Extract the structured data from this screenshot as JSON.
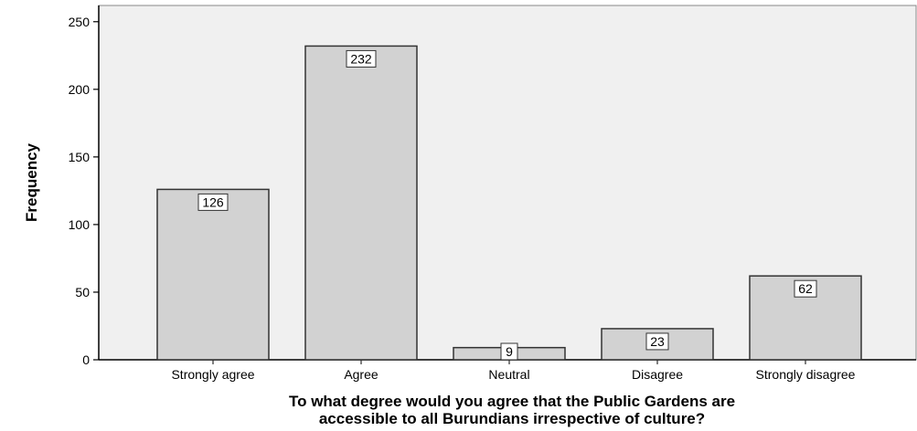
{
  "chart_data": {
    "type": "bar",
    "categories": [
      "Strongly agree",
      "Agree",
      "Neutral",
      "Disagree",
      "Strongly disagree"
    ],
    "values": [
      126,
      232,
      9,
      23,
      62
    ],
    "data_labels": [
      "126",
      "232",
      "9",
      "23",
      "62"
    ],
    "ylabel": "Frequency",
    "xlabel_lines": [
      "To what degree would you agree that the Public Gardens are",
      "accessible to all Burundians irrespective of culture?"
    ],
    "yticks": [
      0,
      50,
      100,
      150,
      200,
      250
    ],
    "ylim": [
      0,
      262
    ],
    "grid": false,
    "colors": {
      "plot_background": "#f0f0f0",
      "bar_fill": "#d2d2d2",
      "bar_stroke": "#333333",
      "label_box_fill": "#ffffff"
    }
  }
}
